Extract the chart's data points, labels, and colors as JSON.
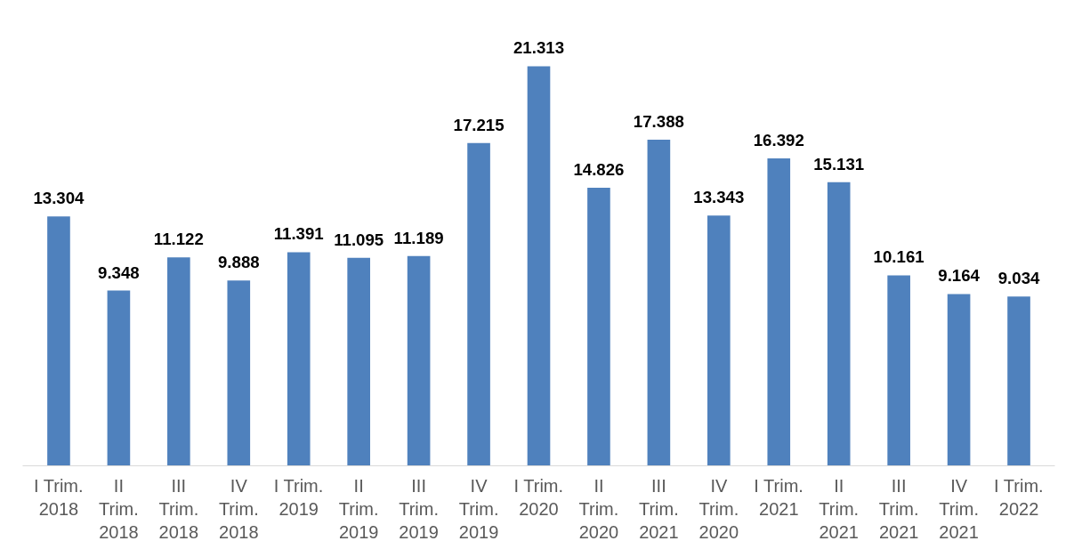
{
  "chart_data": {
    "type": "bar",
    "categories": [
      "I Trim. 2018",
      "II Trim. 2018",
      "III Trim. 2018",
      "IV Trim. 2018",
      "I Trim. 2019",
      "II Trim. 2019",
      "III Trim. 2019",
      "IV Trim. 2019",
      "I Trim. 2020",
      "II Trim. 2020",
      "III Trim. 2021",
      "IV Trim. 2020",
      "I Trim. 2021",
      "II Trim. 2021",
      "III Trim. 2021",
      "IV Trim. 2021",
      "I Trim. 2022"
    ],
    "values": [
      13304,
      9348,
      11122,
      9888,
      11391,
      11095,
      11189,
      17215,
      21313,
      14826,
      17388,
      13343,
      16392,
      15131,
      10161,
      9164,
      9034
    ],
    "value_labels": [
      "13.304",
      "9.348",
      "11.122",
      "9.888",
      "11.391",
      "11.095",
      "11.189",
      "17.215",
      "21.313",
      "14.826",
      "17.388",
      "13.343",
      "16.392",
      "15.131",
      "10.161",
      "9.164",
      "9.034"
    ],
    "color": "#4f81bd",
    "grid": false
  }
}
